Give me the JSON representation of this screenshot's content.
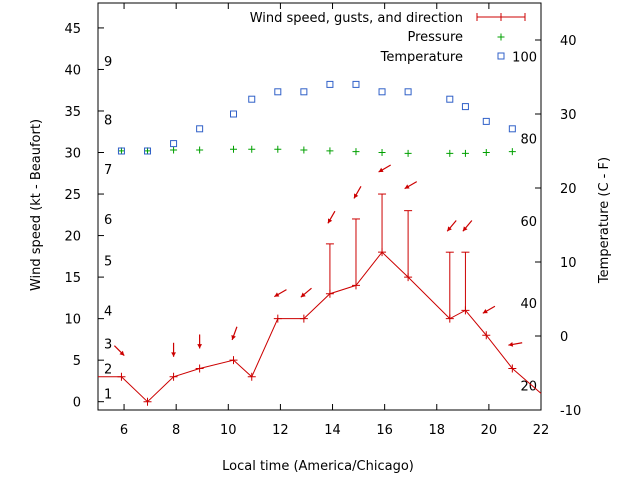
{
  "chart_data": {
    "type": "line",
    "title": "",
    "xlabel": "Local time (America/Chicago)",
    "ylabel": "Wind speed (kt - Beaufort)",
    "y2label": "Temperature (C - F)",
    "xlim": [
      5,
      22
    ],
    "ylim": [
      -1,
      48
    ],
    "y2lim": [
      -10,
      45
    ],
    "x_ticks": [
      6,
      8,
      10,
      12,
      14,
      16,
      18,
      20,
      22
    ],
    "y_ticks": [
      0,
      5,
      10,
      15,
      20,
      25,
      30,
      35,
      40,
      45
    ],
    "y2_ticks": [
      -10,
      0,
      10,
      20,
      30,
      40
    ],
    "beaufort_labels": [
      {
        "label": "1",
        "kt": 1
      },
      {
        "label": "2",
        "kt": 4
      },
      {
        "label": "3",
        "kt": 7
      },
      {
        "label": "4",
        "kt": 11
      },
      {
        "label": "5",
        "kt": 17
      },
      {
        "label": "6",
        "kt": 22
      },
      {
        "label": "7",
        "kt": 28
      },
      {
        "label": "8",
        "kt": 34
      },
      {
        "label": "9",
        "kt": 41
      }
    ],
    "fahrenheit_labels": [
      {
        "label": "20",
        "celsius": -6.67
      },
      {
        "label": "40",
        "celsius": 4.44
      },
      {
        "label": "60",
        "celsius": 15.56
      },
      {
        "label": "80",
        "celsius": 26.67
      },
      {
        "label": "100",
        "celsius": 37.78
      }
    ],
    "legend": {
      "position": "top-right",
      "entries": [
        "Wind speed, gusts, and direction",
        "Pressure",
        "Temperature"
      ]
    },
    "series": [
      {
        "name": "Wind speed, gusts, and direction",
        "color": "#cc0000",
        "x": [
          5,
          5.9,
          6.9,
          7.9,
          8.9,
          10.2,
          10.9,
          11.9,
          12.9,
          13.9,
          14.9,
          15.9,
          16.9,
          18.5,
          19.1,
          19.9,
          20.9,
          22
        ],
        "values": [
          3,
          3,
          0,
          3,
          4,
          5,
          3,
          10,
          10,
          13,
          14,
          18,
          15,
          10,
          11,
          8,
          4,
          1
        ],
        "gusts": [
          null,
          null,
          null,
          null,
          null,
          null,
          null,
          null,
          null,
          19,
          22,
          25,
          23,
          18,
          18,
          null,
          null,
          null
        ],
        "direction_deg": [
          null,
          315,
          null,
          0,
          0,
          20,
          null,
          60,
          50,
          30,
          30,
          60,
          60,
          40,
          40,
          60,
          80,
          null
        ]
      },
      {
        "name": "Pressure",
        "color": "#00a000",
        "x": [
          5.9,
          6.9,
          7.9,
          8.9,
          10.2,
          10.9,
          11.9,
          12.9,
          13.9,
          14.9,
          15.9,
          16.9,
          18.5,
          19.1,
          19.9,
          20.9
        ],
        "values": [
          30.2,
          30.2,
          30.3,
          30.3,
          30.4,
          30.4,
          30.4,
          30.3,
          30.2,
          30.1,
          30.0,
          29.9,
          29.9,
          29.9,
          30.0,
          30.1
        ]
      },
      {
        "name": "Temperature",
        "color": "#3060c8",
        "x": [
          5.9,
          6.9,
          7.9,
          8.9,
          10.2,
          10.9,
          11.9,
          12.9,
          13.9,
          14.9,
          15.9,
          16.9,
          18.5,
          19.1,
          19.9,
          20.9
        ],
        "values": [
          25.0,
          25.0,
          26.0,
          28.0,
          30.0,
          32.0,
          33.0,
          33.0,
          34.0,
          34.0,
          33.0,
          33.0,
          32.0,
          31.0,
          29.0,
          28.0
        ]
      }
    ]
  }
}
